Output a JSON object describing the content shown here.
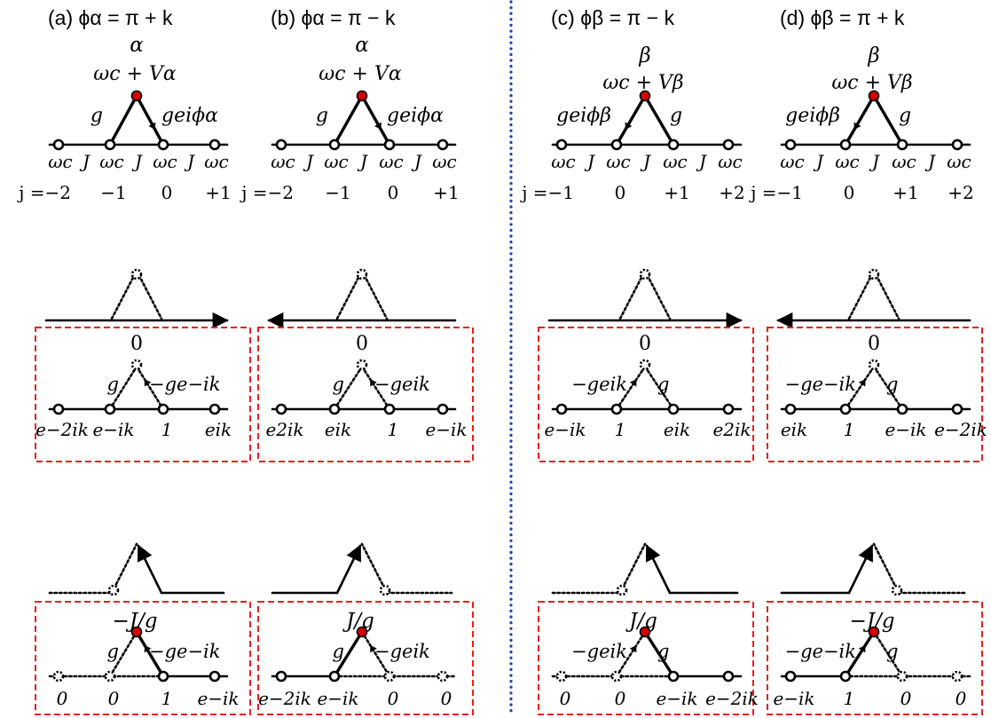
{
  "colors": {
    "ink": "#000000",
    "red_dot": "#d40000",
    "dashed_box": "#e8201e",
    "divider": "#1b3fb5"
  },
  "panels": [
    {
      "id": "a",
      "header": "(a)  ϕα = π + k",
      "top_label": "α",
      "site_energy": "ωc + Vα",
      "left_coupling": "g",
      "right_coupling": "geiϕα",
      "site_labels": [
        "ωc",
        "ωc",
        "ωc",
        "ωc"
      ],
      "bond_labels": [
        "J",
        "J",
        "J"
      ],
      "index_labels": [
        "j =−2",
        "−1",
        "0",
        "+1"
      ],
      "arrow_direction": "right",
      "mode1_value": "0",
      "mode1_left": "g",
      "mode1_right": "−ge−ik",
      "mode1_amplitudes": [
        "e−2ik",
        "e−ik",
        "1",
        "eik"
      ],
      "mode2_value": "−J/g",
      "mode2_left": "g",
      "mode2_right": "−ge−ik",
      "mode2_amplitudes": [
        "0",
        "0",
        "1",
        "e−ik"
      ]
    },
    {
      "id": "b",
      "header": "(b)  ϕα = π − k",
      "top_label": "α",
      "site_energy": "ωc + Vα",
      "left_coupling": "g",
      "right_coupling": "geiϕα",
      "site_labels": [
        "ωc",
        "ωc",
        "ωc",
        "ωc"
      ],
      "bond_labels": [
        "J",
        "J",
        "J"
      ],
      "index_labels": [
        "j =−2",
        "−1",
        "0",
        "+1"
      ],
      "arrow_direction": "left",
      "mode1_value": "0",
      "mode1_left": "g",
      "mode1_right": "−geik",
      "mode1_amplitudes": [
        "e2ik",
        "eik",
        "1",
        "e−ik"
      ],
      "mode2_value": "J/g",
      "mode2_left": "g",
      "mode2_right": "−geik",
      "mode2_amplitudes": [
        "e−2ik",
        "e−ik",
        "0",
        "0"
      ]
    },
    {
      "id": "c",
      "header": "(c)  ϕβ = π − k",
      "top_label": "β",
      "site_energy": "ωc + Vβ",
      "left_coupling": "geiϕβ",
      "right_coupling": "g",
      "site_labels": [
        "ωc",
        "ωc",
        "ωc",
        "ωc"
      ],
      "bond_labels": [
        "J",
        "J",
        "J"
      ],
      "index_labels": [
        "j =−1",
        "0",
        "+1",
        "+2"
      ],
      "arrow_direction": "right",
      "mode1_value": "0",
      "mode1_left": "−geik",
      "mode1_right": "g",
      "mode1_amplitudes": [
        "e−ik",
        "1",
        "eik",
        "e2ik"
      ],
      "mode2_value": "J/g",
      "mode2_left": "−geik",
      "mode2_right": "g",
      "mode2_amplitudes": [
        "0",
        "0",
        "e−ik",
        "e−2ik"
      ]
    },
    {
      "id": "d",
      "header": "(d)  ϕβ = π + k",
      "top_label": "β",
      "site_energy": "ωc + Vβ",
      "left_coupling": "geiϕβ",
      "right_coupling": "g",
      "site_labels": [
        "ωc",
        "ωc",
        "ωc",
        "ωc"
      ],
      "bond_labels": [
        "J",
        "J",
        "J"
      ],
      "index_labels": [
        "j =−1",
        "0",
        "+1",
        "+2"
      ],
      "arrow_direction": "left",
      "mode1_value": "0",
      "mode1_left": "−ge−ik",
      "mode1_right": "g",
      "mode1_amplitudes": [
        "eik",
        "1",
        "e−ik",
        "e−2ik"
      ],
      "mode2_value": "−J/g",
      "mode2_left": "−ge−ik",
      "mode2_right": "g",
      "mode2_amplitudes": [
        "e−ik",
        "1",
        "0",
        "0"
      ]
    }
  ]
}
